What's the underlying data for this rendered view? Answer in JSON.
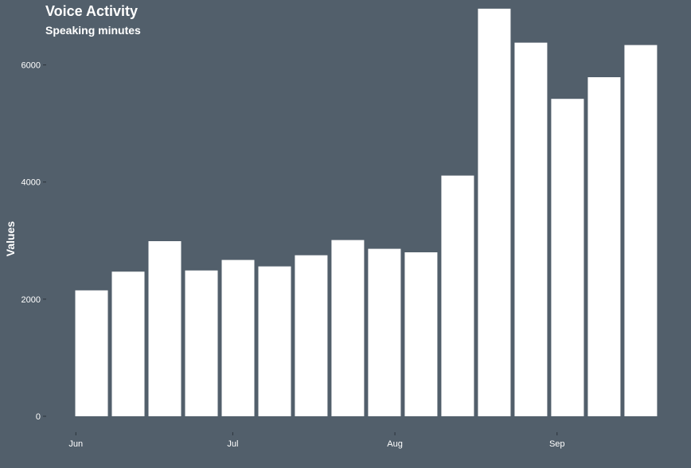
{
  "chart_data": {
    "type": "bar",
    "title": "Voice Activity",
    "subtitle": "Speaking minutes",
    "xlabel": "",
    "ylabel": "Values",
    "x": [
      "2023-06-04",
      "2023-06-11",
      "2023-06-18",
      "2023-06-25",
      "2023-07-02",
      "2023-07-09",
      "2023-07-16",
      "2023-07-23",
      "2023-07-30",
      "2023-08-06",
      "2023-08-13",
      "2023-08-20",
      "2023-08-27",
      "2023-09-03",
      "2023-09-10",
      "2023-09-17"
    ],
    "values": [
      2150,
      2470,
      2990,
      2490,
      2670,
      2560,
      2750,
      3010,
      2860,
      2800,
      4110,
      6960,
      6380,
      5420,
      5790,
      6340
    ],
    "ylim": [
      0,
      7000
    ],
    "yticks": [
      0,
      2000,
      4000,
      6000
    ],
    "xticks": [
      {
        "date": "2023-06-01",
        "label": "Jun"
      },
      {
        "date": "2023-07-01",
        "label": "Jul"
      },
      {
        "date": "2023-08-01",
        "label": "Aug"
      },
      {
        "date": "2023-09-01",
        "label": "Sep"
      }
    ],
    "grid": false,
    "colors": {
      "background": "#525f6b",
      "bar": "#ffffff"
    }
  }
}
